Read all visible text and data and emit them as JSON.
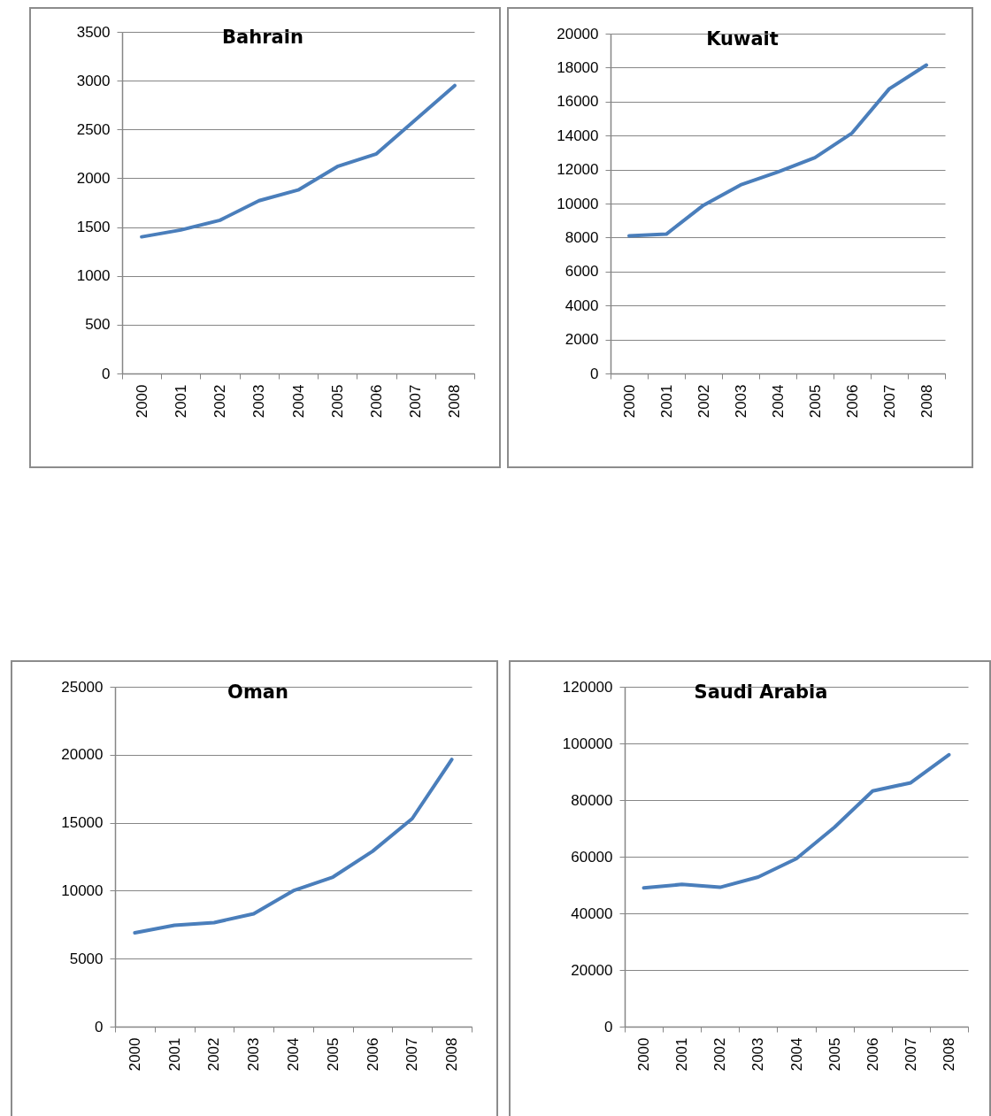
{
  "chart_data": [
    {
      "type": "line",
      "title": "Bahrain",
      "categories": [
        "2000",
        "2001",
        "2002",
        "2003",
        "2004",
        "2005",
        "2006",
        "2007",
        "2008"
      ],
      "values": [
        1400,
        1470,
        1570,
        1770,
        1880,
        2120,
        2250,
        2600,
        2950
      ],
      "color": "#4a7ebb",
      "ylim": [
        0,
        3500
      ],
      "yticks": [
        0,
        500,
        1000,
        1500,
        2000,
        2500,
        3000,
        3500
      ],
      "grid": "y"
    },
    {
      "type": "line",
      "title": "Kuwait",
      "categories": [
        "2000",
        "2001",
        "2002",
        "2003",
        "2004",
        "2005",
        "2006",
        "2007",
        "2008"
      ],
      "values": [
        8100,
        8200,
        9900,
        11100,
        11850,
        12700,
        14150,
        16750,
        18150
      ],
      "color": "#4a7ebb",
      "ylim": [
        0,
        20000
      ],
      "yticks": [
        0,
        2000,
        4000,
        6000,
        8000,
        10000,
        12000,
        14000,
        16000,
        18000,
        20000
      ],
      "grid": "y"
    },
    {
      "type": "line",
      "title": "Oman",
      "categories": [
        "2000",
        "2001",
        "2002",
        "2003",
        "2004",
        "2005",
        "2006",
        "2007",
        "2008"
      ],
      "values": [
        6900,
        7450,
        7650,
        8300,
        10000,
        11000,
        12900,
        15300,
        19650
      ],
      "color": "#4a7ebb",
      "ylim": [
        0,
        25000
      ],
      "yticks": [
        0,
        5000,
        10000,
        15000,
        20000,
        25000
      ],
      "grid": "y"
    },
    {
      "type": "line",
      "title": "Saudi Arabia",
      "categories": [
        "2000",
        "2001",
        "2002",
        "2003",
        "2004",
        "2005",
        "2006",
        "2007",
        "2008"
      ],
      "values": [
        49000,
        50200,
        49200,
        52800,
        59300,
        70400,
        83200,
        86100,
        96000
      ],
      "color": "#4a7ebb",
      "ylim": [
        0,
        120000
      ],
      "yticks": [
        0,
        20000,
        40000,
        60000,
        80000,
        100000,
        120000
      ],
      "grid": "y"
    }
  ]
}
